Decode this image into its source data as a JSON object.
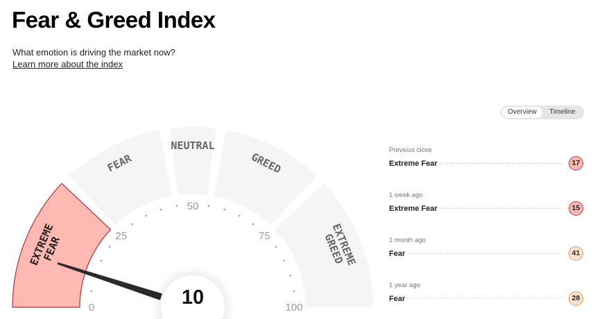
{
  "header": {
    "title": "Fear & Greed Index",
    "subtitle": "What emotion is driving the market now?",
    "learn_link": "Learn more about the index"
  },
  "toggle": {
    "options": [
      "Overview",
      "Timeline"
    ],
    "active": "Overview"
  },
  "gauge": {
    "value": 10,
    "value_label": "10",
    "active_segment": "Extreme Fear",
    "colors": {
      "active_fill": "#ffb9b3",
      "active_stroke": "#b0323c",
      "segment": "#f5f5f5",
      "needle": "#2a2a2a"
    },
    "segments": [
      {
        "name": "Extreme Fear",
        "lines": [
          "EXTREME",
          "FEAR"
        ],
        "from": 0,
        "to": 25
      },
      {
        "name": "Fear",
        "lines": [
          "FEAR"
        ],
        "from": 25,
        "to": 45
      },
      {
        "name": "Neutral",
        "lines": [
          "NEUTRAL"
        ],
        "from": 45,
        "to": 55
      },
      {
        "name": "Greed",
        "lines": [
          "GREED"
        ],
        "from": 55,
        "to": 75
      },
      {
        "name": "Extreme Greed",
        "lines": [
          "EXTREME",
          "GREED"
        ],
        "from": 75,
        "to": 100
      }
    ],
    "ticks": [
      "0",
      "25",
      "50",
      "75",
      "100"
    ]
  },
  "history": [
    {
      "label": "Previous close",
      "rating": "Extreme Fear",
      "value": "17",
      "color": "#f7b7b3",
      "border": "#c44"
    },
    {
      "label": "1 week ago",
      "rating": "Extreme Fear",
      "value": "15",
      "color": "#f7b7b3",
      "border": "#c44"
    },
    {
      "label": "1 month ago",
      "rating": "Fear",
      "value": "41",
      "color": "#fde3d2",
      "border": "#e29a62"
    },
    {
      "label": "1 year ago",
      "rating": "Fear",
      "value": "28",
      "color": "#fde3d2",
      "border": "#e29a62"
    }
  ]
}
